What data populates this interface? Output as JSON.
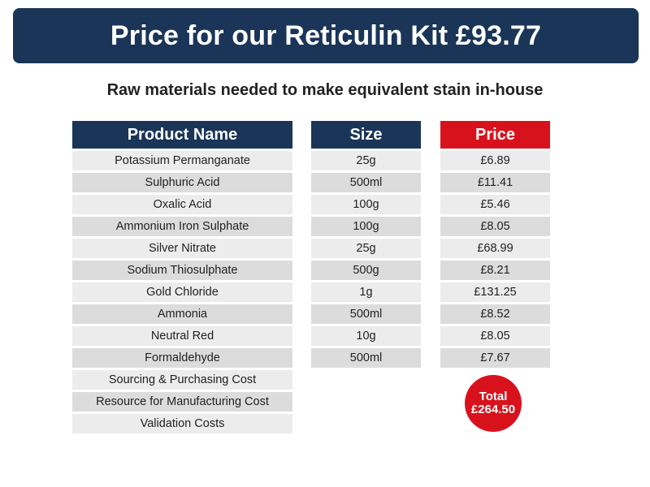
{
  "banner": {
    "title": "Price for our Reticulin Kit £93.77"
  },
  "subtitle": "Raw materials needed to make equivalent stain in-house",
  "table": {
    "headers": {
      "product": "Product Name",
      "size": "Size",
      "price": "Price"
    },
    "products": [
      "Potassium Permanganate",
      "Sulphuric Acid",
      "Oxalic Acid",
      "Ammonium Iron Sulphate",
      "Silver Nitrate",
      "Sodium Thiosulphate",
      "Gold Chloride",
      "Ammonia",
      "Neutral Red",
      "Formaldehyde",
      "Sourcing & Purchasing Cost",
      "Resource for Manufacturing Cost",
      "Validation Costs"
    ],
    "sizes": [
      "25g",
      "500ml",
      "100g",
      "100g",
      "25g",
      "500g",
      "1g",
      "500ml",
      "10g",
      "500ml"
    ],
    "prices": [
      "£6.89",
      "£11.41",
      "£5.46",
      "£8.05",
      "£68.99",
      "£8.21",
      "£131.25",
      "£8.52",
      "£8.05",
      "£7.67"
    ]
  },
  "total": {
    "label": "Total",
    "value": "£264.50"
  },
  "colors": {
    "navy": "#1a3558",
    "red": "#d8121c",
    "row_light": "#ececec",
    "row_dark": "#dcdcdc"
  }
}
